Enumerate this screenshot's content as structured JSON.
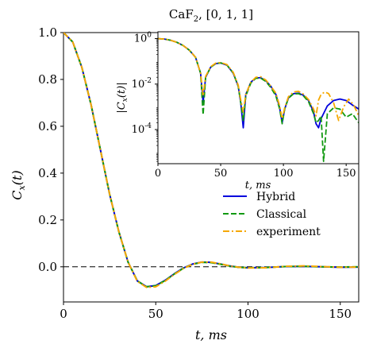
{
  "chart_data": {
    "type": "line",
    "title_main": "CaF",
    "title_sub": "2",
    "title_rest": ", [0, 1, 1]",
    "xlabel": "t,  ms",
    "ylabel": "C",
    "ylabel_sub": "x",
    "ylabel_rest": "(t)",
    "xlim": [
      0,
      160
    ],
    "ylim": [
      -0.15,
      1.0
    ],
    "xticks": [
      0,
      50,
      100,
      150
    ],
    "yticks": [
      0.0,
      0.2,
      0.4,
      0.6,
      0.8,
      1.0
    ],
    "xtick_labels": [
      "0",
      "50",
      "100",
      "150"
    ],
    "ytick_labels": [
      "0.0",
      "0.2",
      "0.4",
      "0.6",
      "0.8",
      "1.0"
    ],
    "reference_line": {
      "y": 0,
      "style": "dashed",
      "color": "#000000"
    },
    "legend": {
      "position": "right",
      "entries": [
        "Hybrid",
        "Classical",
        "experiment"
      ]
    },
    "series": [
      {
        "name": "Hybrid",
        "color": "#0000dd",
        "style": "solid",
        "x": [
          0,
          5,
          10,
          15,
          20,
          25,
          30,
          35,
          40,
          45,
          50,
          55,
          60,
          65,
          70,
          75,
          80,
          85,
          90,
          95,
          100,
          110,
          120,
          130,
          140,
          150,
          160
        ],
        "y": [
          1.0,
          0.96,
          0.85,
          0.69,
          0.5,
          0.31,
          0.15,
          0.02,
          -0.06,
          -0.085,
          -0.08,
          -0.058,
          -0.03,
          -0.005,
          0.012,
          0.02,
          0.019,
          0.012,
          0.004,
          -0.002,
          -0.004,
          -0.003,
          0.001,
          0.002,
          0.0,
          -0.002,
          -0.001
        ]
      },
      {
        "name": "Classical",
        "color": "#119911",
        "style": "dashed",
        "x": [
          0,
          5,
          10,
          15,
          20,
          25,
          30,
          35,
          40,
          45,
          50,
          55,
          60,
          65,
          70,
          75,
          80,
          85,
          90,
          95,
          100,
          110,
          120,
          130,
          140,
          150,
          160
        ],
        "y": [
          1.0,
          0.96,
          0.85,
          0.69,
          0.5,
          0.31,
          0.15,
          0.02,
          -0.06,
          -0.085,
          -0.081,
          -0.059,
          -0.031,
          -0.006,
          0.011,
          0.019,
          0.018,
          0.011,
          0.003,
          -0.002,
          -0.004,
          -0.003,
          0.001,
          0.002,
          0.0,
          -0.001,
          0.0
        ]
      },
      {
        "name": "experiment",
        "color": "#f5a800",
        "style": "dashdot",
        "x": [
          0,
          5,
          10,
          15,
          20,
          25,
          30,
          35,
          40,
          45,
          50,
          55,
          60,
          65,
          70,
          75,
          80,
          85,
          90,
          95,
          100,
          110,
          120,
          130,
          140,
          150,
          160
        ],
        "y": [
          1.0,
          0.96,
          0.85,
          0.69,
          0.5,
          0.31,
          0.15,
          0.02,
          -0.062,
          -0.088,
          -0.085,
          -0.062,
          -0.033,
          -0.007,
          0.011,
          0.02,
          0.02,
          0.013,
          0.004,
          -0.002,
          -0.005,
          -0.004,
          0.002,
          0.004,
          0.001,
          -0.002,
          -0.001
        ]
      }
    ],
    "inset": {
      "type": "line",
      "scale_y": "log",
      "xlabel": "t,  ms",
      "ylabel": "|C",
      "ylabel_sub": "x",
      "ylabel_rest": "(t)|",
      "xlim": [
        0,
        160
      ],
      "ylim_exp": [
        -5.5,
        0.3
      ],
      "xticks": [
        0,
        50,
        100,
        150
      ],
      "xtick_labels": [
        "0",
        "50",
        "100",
        "150"
      ],
      "ytick_exps": [
        0,
        -2,
        -4
      ],
      "ytick_base": "10",
      "ytick_exp_labels": [
        "0",
        "-2",
        "-4"
      ],
      "series": [
        {
          "name": "Hybrid",
          "color": "#0000dd",
          "style": "solid",
          "x": [
            0,
            5,
            10,
            15,
            20,
            25,
            30,
            34,
            36,
            38,
            42,
            46,
            50,
            55,
            60,
            64,
            66,
            68,
            70,
            74,
            78,
            82,
            86,
            90,
            94,
            97,
            99,
            101,
            104,
            108,
            112,
            116,
            120,
            124,
            126,
            128,
            130,
            135,
            140,
            145,
            150,
            155,
            160
          ],
          "y": [
            1.0,
            0.96,
            0.85,
            0.69,
            0.5,
            0.31,
            0.15,
            0.03,
            0.0015,
            0.02,
            0.055,
            0.079,
            0.085,
            0.068,
            0.03,
            0.008,
            0.0015,
            0.00012,
            0.0035,
            0.012,
            0.019,
            0.019,
            0.014,
            0.008,
            0.0035,
            0.0009,
            0.0002,
            0.0008,
            0.0025,
            0.0038,
            0.004,
            0.0032,
            0.0019,
            0.0006,
            0.00018,
            0.00012,
            0.0003,
            0.0011,
            0.0019,
            0.0022,
            0.0019,
            0.0012,
            0.0008
          ]
        },
        {
          "name": "Classical",
          "color": "#119911",
          "style": "dashed",
          "x": [
            0,
            5,
            10,
            15,
            20,
            25,
            30,
            34,
            36,
            38,
            42,
            46,
            50,
            55,
            60,
            64,
            66,
            68,
            70,
            74,
            78,
            82,
            86,
            90,
            94,
            97,
            99,
            101,
            104,
            108,
            112,
            116,
            120,
            124,
            126,
            128,
            130,
            132,
            135,
            140,
            145,
            150,
            155,
            160
          ],
          "y": [
            1.0,
            0.96,
            0.85,
            0.69,
            0.5,
            0.31,
            0.15,
            0.03,
            0.00045,
            0.02,
            0.055,
            0.08,
            0.086,
            0.069,
            0.031,
            0.008,
            0.0015,
            0.00025,
            0.003,
            0.011,
            0.018,
            0.018,
            0.013,
            0.007,
            0.003,
            0.0008,
            0.00018,
            0.0008,
            0.0024,
            0.0037,
            0.0038,
            0.003,
            0.0017,
            0.0005,
            0.0002,
            0.00025,
            0.0004,
            4e-06,
            0.0005,
            0.0009,
            0.0008,
            0.00035,
            0.0005,
            0.0002
          ]
        },
        {
          "name": "experiment",
          "color": "#f5a800",
          "style": "dashdot",
          "x": [
            0,
            5,
            10,
            15,
            20,
            25,
            30,
            34,
            36,
            38,
            42,
            46,
            50,
            55,
            60,
            64,
            66,
            68,
            70,
            74,
            78,
            82,
            86,
            90,
            94,
            97,
            99,
            101,
            104,
            108,
            112,
            116,
            120,
            124,
            126,
            128,
            130,
            133,
            136,
            140,
            144,
            148,
            152,
            156,
            160
          ],
          "y": [
            1.0,
            0.96,
            0.85,
            0.69,
            0.5,
            0.31,
            0.15,
            0.03,
            0.003,
            0.022,
            0.058,
            0.083,
            0.089,
            0.072,
            0.033,
            0.009,
            0.002,
            0.0006,
            0.0035,
            0.012,
            0.02,
            0.021,
            0.015,
            0.008,
            0.004,
            0.0011,
            0.0003,
            0.0009,
            0.0028,
            0.0045,
            0.0048,
            0.0036,
            0.0021,
            0.0008,
            0.0004,
            0.002,
            0.0035,
            0.0045,
            0.0038,
            0.0015,
            0.00025,
            0.001,
            0.0022,
            0.0012,
            0.0004
          ]
        }
      ]
    }
  }
}
